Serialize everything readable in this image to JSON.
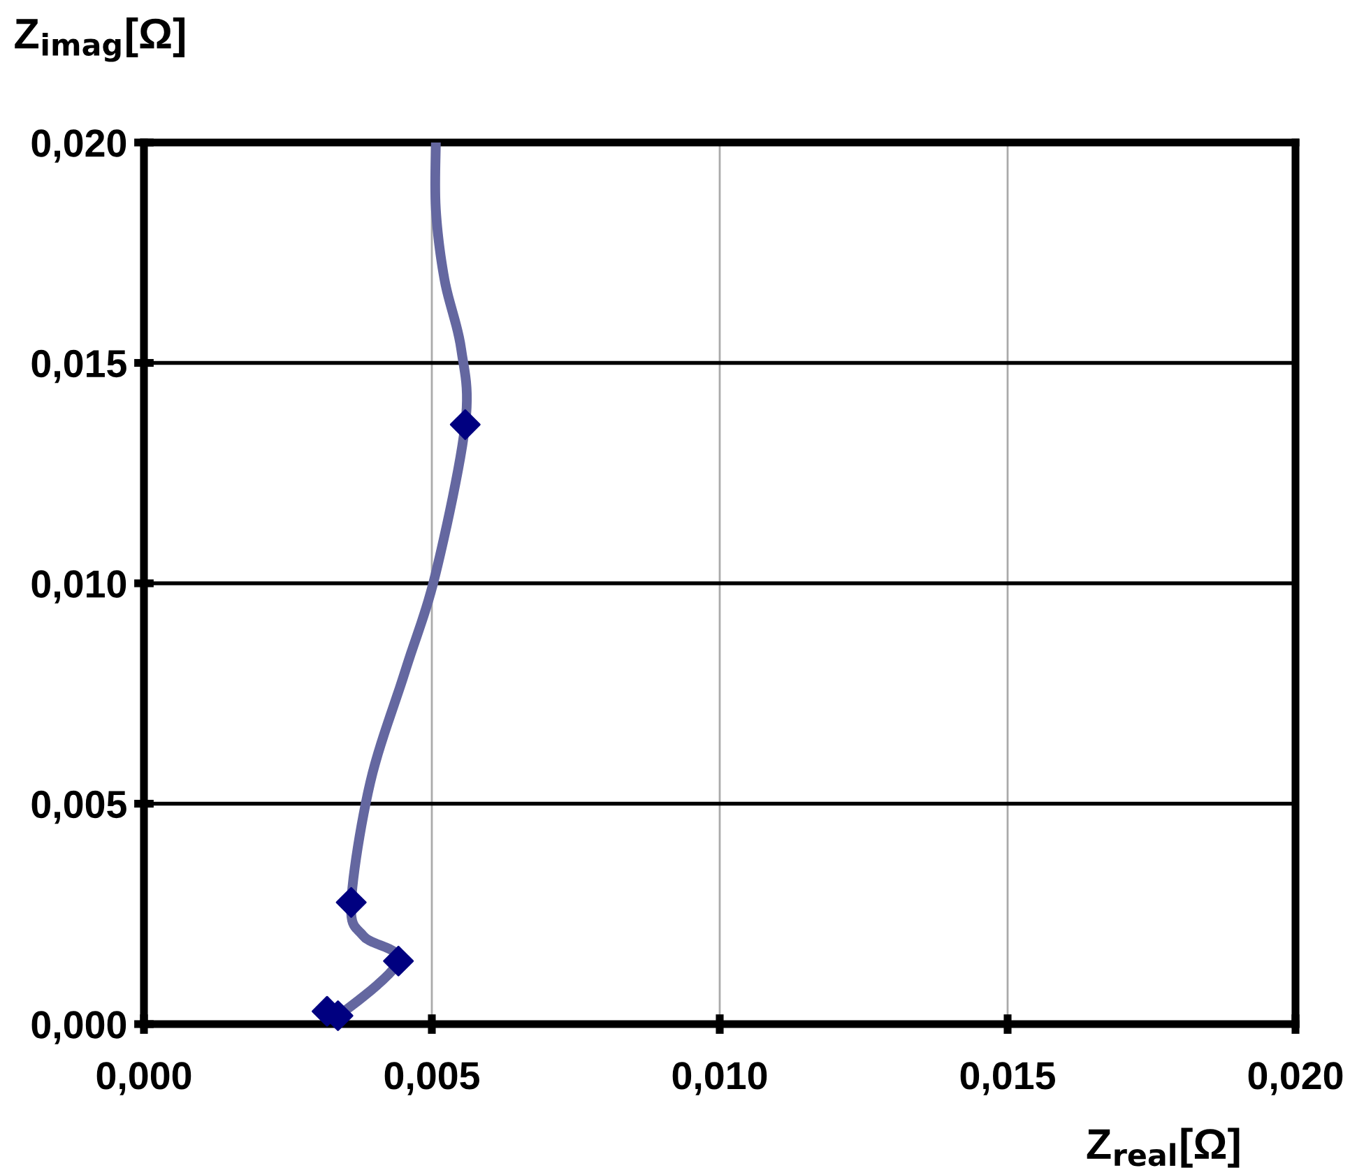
{
  "chart_data": {
    "type": "line",
    "xlabel": "Z$_{real}$[Ω]",
    "ylabel": "Z$_{imag}$[Ω]",
    "xlim": [
      0,
      0.02
    ],
    "ylim": [
      0,
      0.02
    ],
    "xticks": [
      {
        "value": 0,
        "label": "0,000"
      },
      {
        "value": 0.005,
        "label": "0,005"
      },
      {
        "value": 0.01,
        "label": "0,010"
      },
      {
        "value": 0.015,
        "label": "0,015"
      },
      {
        "value": 0.02,
        "label": "0,020"
      }
    ],
    "yticks": [
      {
        "value": 0,
        "label": "0,000"
      },
      {
        "value": 0.005,
        "label": "0,005"
      },
      {
        "value": 0.01,
        "label": "0,010"
      },
      {
        "value": 0.015,
        "label": "0,015"
      },
      {
        "value": 0.02,
        "label": "0,020"
      }
    ],
    "grid": true,
    "legend": false,
    "series": [
      {
        "color": "#6467a0",
        "marker": "none",
        "x": [
          0.00318,
          0.00337,
          0.00442,
          0.00381,
          0.0036,
          0.00393,
          0.00454,
          0.00507,
          0.00558,
          0.00551,
          0.00522,
          0.00507,
          0.00507
        ],
        "values": [
          0.00029,
          0.00019,
          0.00143,
          0.002,
          0.00276,
          0.00548,
          0.00802,
          0.01024,
          0.0136,
          0.01531,
          0.01689,
          0.01848,
          0.02
        ]
      },
      {
        "type": "scatter",
        "color": "#000080",
        "marker": "diamond",
        "x": [
          0.00318,
          0.00337,
          0.00442,
          0.0036,
          0.00558
        ],
        "values": [
          0.00029,
          0.00019,
          0.00143,
          0.00276,
          0.0136
        ]
      }
    ]
  }
}
